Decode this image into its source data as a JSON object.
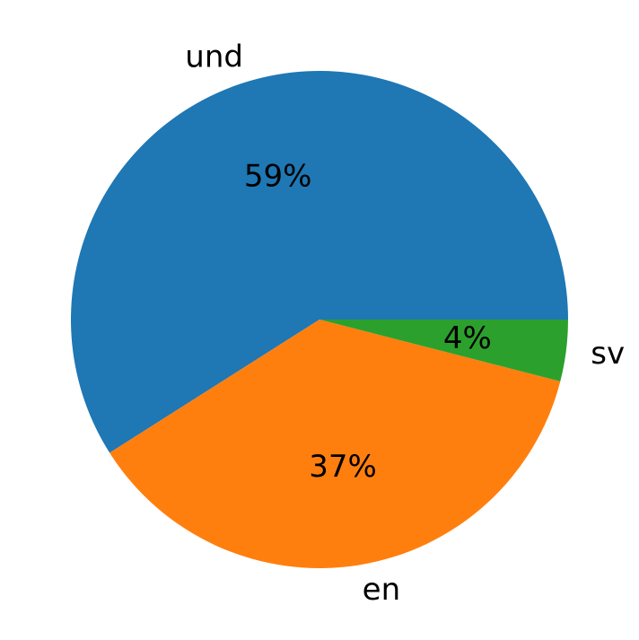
{
  "chart_data": {
    "type": "pie",
    "categories": [
      "und",
      "en",
      "sv"
    ],
    "values": [
      59,
      37,
      4
    ],
    "value_labels": [
      "59%",
      "37%",
      "4%"
    ],
    "colors": [
      "#1f77b4",
      "#ff7f0e",
      "#2ca02c"
    ],
    "start_angle_deg": 0,
    "direction": "counterclockwise",
    "legend": "none"
  }
}
